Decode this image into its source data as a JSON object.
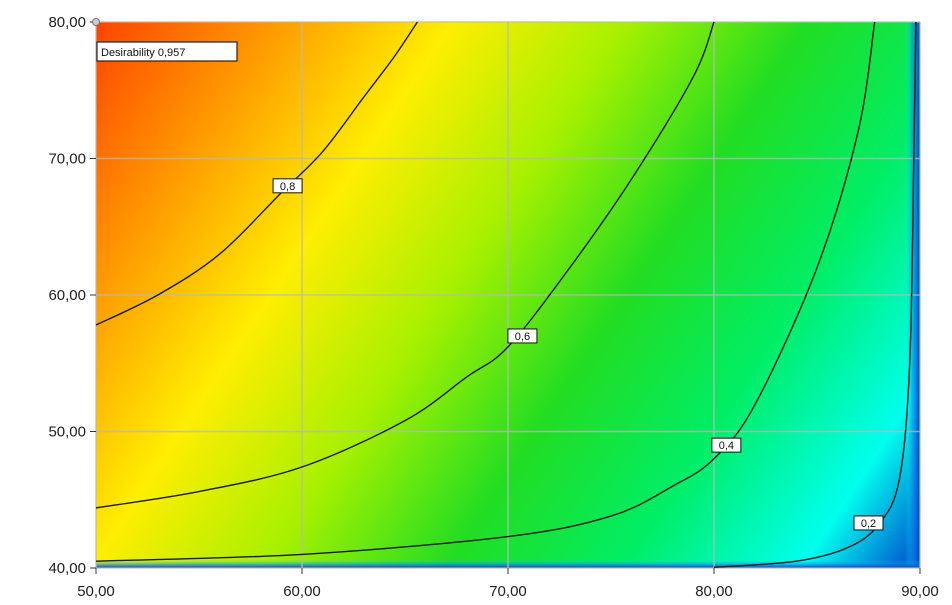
{
  "chart_data": {
    "type": "contour",
    "xlim": [
      50,
      90
    ],
    "ylim": [
      40,
      80
    ],
    "x_ticks": [
      "50,00",
      "60,00",
      "70,00",
      "80,00",
      "90,00"
    ],
    "y_ticks": [
      "40,00",
      "50,00",
      "60,00",
      "70,00",
      "80,00"
    ],
    "grid": true,
    "colorscale": [
      "#ff4400",
      "#ff9900",
      "#ffee00",
      "#a6f000",
      "#22dd22",
      "#00ee66",
      "#00ffee",
      "#0044cc"
    ],
    "contours": [
      {
        "level": "0,8",
        "points": [
          [
            50,
            57.8
          ],
          [
            53,
            60
          ],
          [
            56,
            63
          ],
          [
            59,
            67.5
          ],
          [
            61,
            70.5
          ],
          [
            63,
            74.5
          ],
          [
            64.5,
            77.5
          ],
          [
            65.6,
            80
          ]
        ],
        "label_at": [
          59.3,
          68
        ]
      },
      {
        "level": "0,6",
        "points": [
          [
            50,
            44.4
          ],
          [
            55,
            45.6
          ],
          [
            60,
            47.4
          ],
          [
            65,
            50.8
          ],
          [
            68,
            54
          ],
          [
            70,
            56.2
          ],
          [
            73,
            62
          ],
          [
            76,
            68.5
          ],
          [
            79,
            76
          ],
          [
            80,
            80
          ]
        ],
        "label_at": [
          70.7,
          57
        ]
      },
      {
        "level": "0,4",
        "points": [
          [
            50,
            40.5
          ],
          [
            60,
            41
          ],
          [
            70,
            42.3
          ],
          [
            75,
            43.8
          ],
          [
            78,
            46
          ],
          [
            80,
            48
          ],
          [
            82,
            52
          ],
          [
            85,
            62
          ],
          [
            87,
            72
          ],
          [
            87.8,
            80
          ]
        ],
        "label_at": [
          80.6,
          49
        ]
      },
      {
        "level": "0,2",
        "points": [
          [
            80,
            40.05
          ],
          [
            84,
            40.5
          ],
          [
            86.5,
            41.5
          ],
          [
            88,
            43.2
          ],
          [
            89,
            46.5
          ],
          [
            89.5,
            55
          ],
          [
            89.7,
            70
          ],
          [
            89.8,
            80
          ]
        ],
        "label_at": [
          87.5,
          43.3
        ]
      }
    ],
    "point": {
      "x": 50,
      "y": 80
    },
    "annotation": "Desirability  0,957"
  }
}
